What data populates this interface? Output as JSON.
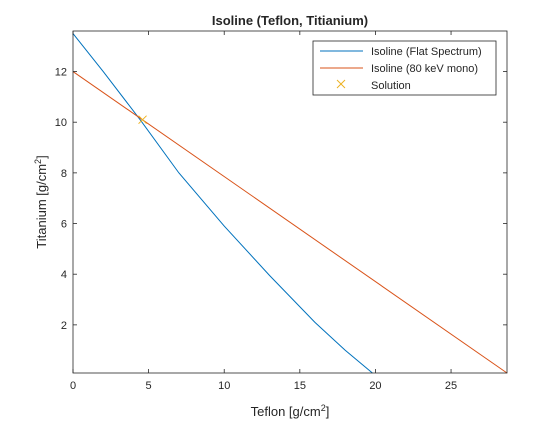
{
  "figure": {
    "background": "#ffffff"
  },
  "chart_data": {
    "type": "line",
    "title": "Isoline (Teflon, Titianium)",
    "xlabel": "Teflon [g/cm²]",
    "ylabel": "Titanium [g/cm²]",
    "xlabel_base": "Teflon [g/cm",
    "xlabel_sup": "2",
    "xlabel_end": "]",
    "ylabel_base": "Titanium [g/cm",
    "ylabel_sup": "2",
    "ylabel_end": "]",
    "xlim": [
      0,
      28.7
    ],
    "ylim": [
      0.1,
      13.6
    ],
    "xticks": [
      0,
      5,
      10,
      15,
      20,
      25
    ],
    "yticks": [
      2,
      4,
      6,
      8,
      10,
      12
    ],
    "grid": false,
    "legend_position": "top-right",
    "series": [
      {
        "name": "Isoline (Flat Spectrum)",
        "color": "#0072BD",
        "x": [
          0,
          2,
          4.5,
          7,
          10,
          13,
          16,
          18,
          19.8
        ],
        "y": [
          13.5,
          12.0,
          10.05,
          8.0,
          5.9,
          3.95,
          2.1,
          1.0,
          0.1
        ]
      },
      {
        "name": "Isoline (80 keV mono)",
        "color": "#D95319",
        "x": [
          0,
          28.7
        ],
        "y": [
          12.0,
          0.1
        ]
      },
      {
        "name": "Solution",
        "color": "#EDB120",
        "marker": "x",
        "x": [
          4.6
        ],
        "y": [
          10.1
        ]
      }
    ]
  }
}
